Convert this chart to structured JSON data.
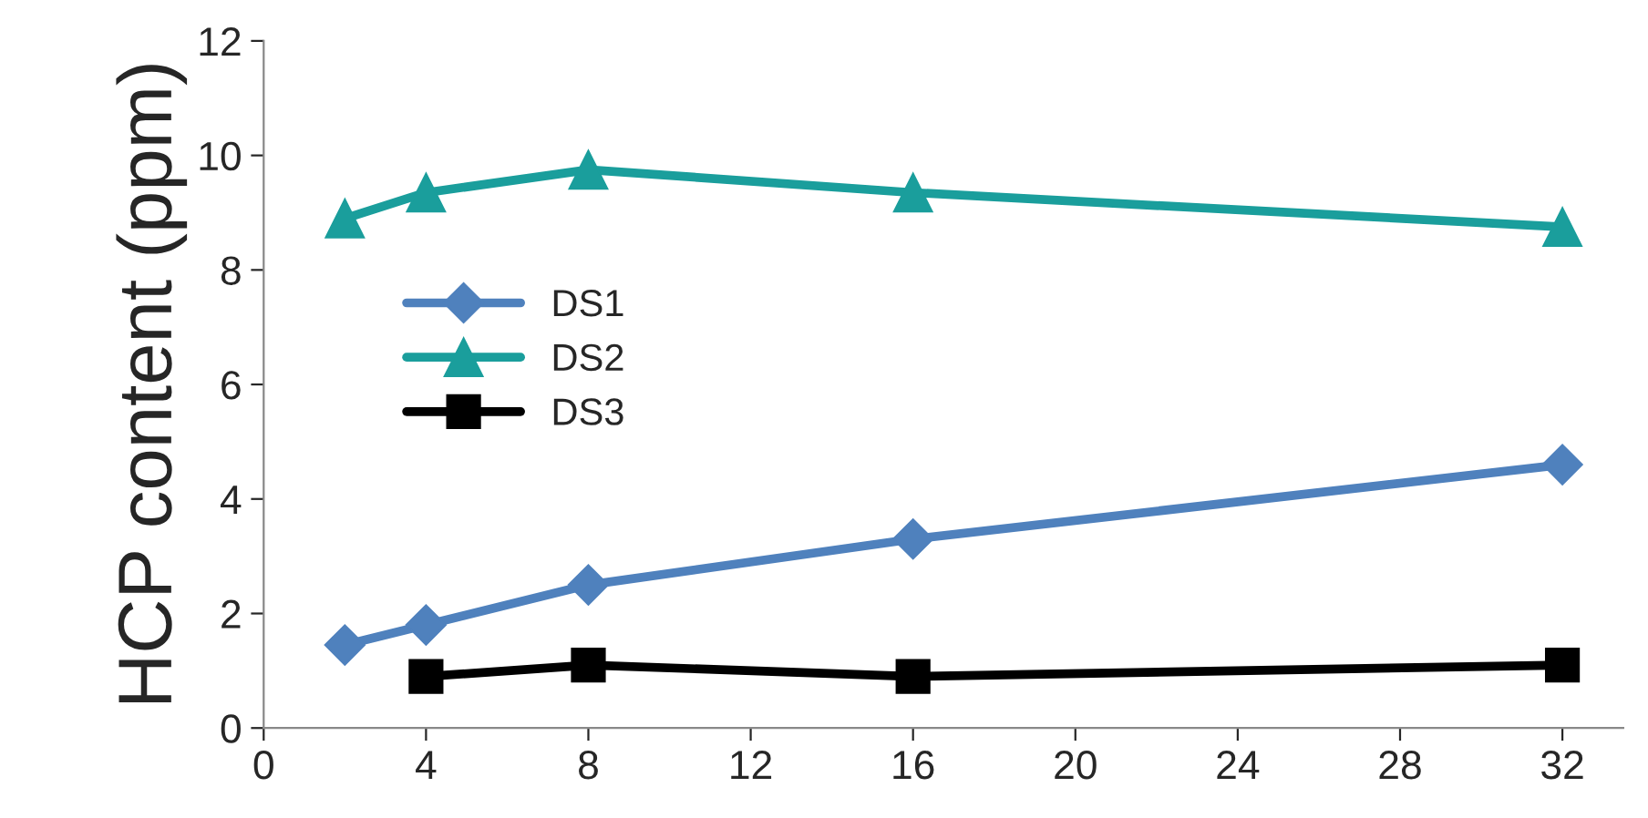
{
  "chart_data": {
    "type": "line",
    "ylabel": "HCP content (ppm)",
    "xlim": [
      0,
      33.5
    ],
    "xticks": [
      0,
      4,
      8,
      12,
      16,
      20,
      24,
      28,
      32
    ],
    "ylim": [
      0,
      12
    ],
    "yticks": [
      0,
      2,
      4,
      6,
      8,
      10,
      12
    ],
    "grid": false,
    "legend": "left",
    "line_style": "solid",
    "series": [
      {
        "name": "DS1",
        "color": "#4f81bd",
        "marker": "diamond",
        "x": [
          2,
          4,
          8,
          16,
          32
        ],
        "values": [
          1.45,
          1.8,
          2.5,
          3.3,
          4.6
        ]
      },
      {
        "name": "DS2",
        "color": "#1a9e9c",
        "marker": "triangle",
        "x": [
          2,
          4,
          8,
          16,
          32
        ],
        "values": [
          8.9,
          9.35,
          9.75,
          9.35,
          8.75
        ]
      },
      {
        "name": "DS3",
        "color": "#000000",
        "marker": "square",
        "x": [
          4,
          8,
          16,
          32
        ],
        "values": [
          0.9,
          1.1,
          0.9,
          1.1
        ]
      }
    ]
  }
}
